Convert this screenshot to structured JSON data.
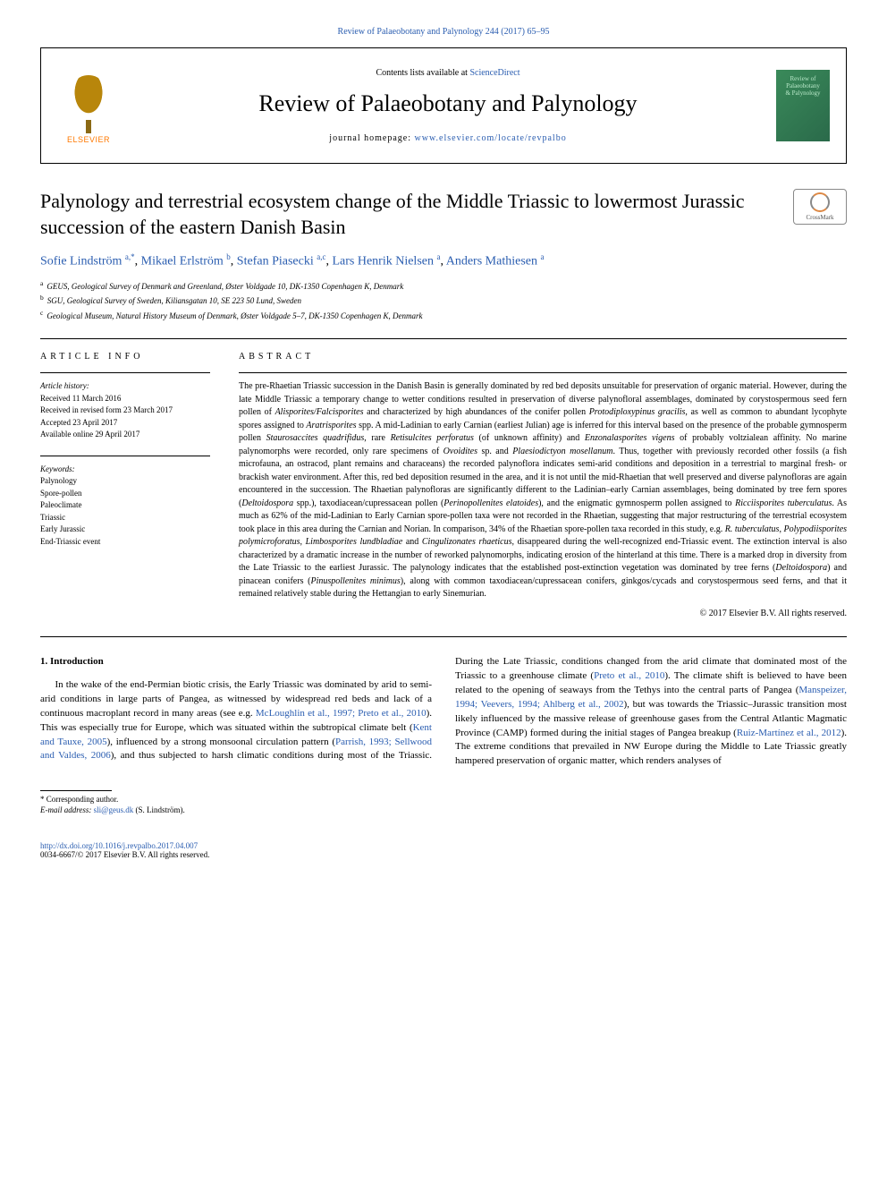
{
  "topBar": {
    "citation": "Review of Palaeobotany and Palynology 244 (2017) 65–95",
    "citationUrl": "#"
  },
  "header": {
    "elsevierLabel": "ELSEVIER",
    "contentsPrefix": "Contents lists available at ",
    "contentsLink": "ScienceDirect",
    "journalName": "Review of Palaeobotany and Palynology",
    "homepagePrefix": "journal homepage: ",
    "homepageUrl": "www.elsevier.com/locate/revpalbo",
    "coverLine1": "Review of",
    "coverLine2": "Palaeobotany",
    "coverLine3": "& Palynology",
    "coverColor": "#3a8a5a"
  },
  "title": "Palynology and terrestrial ecosystem change of the Middle Triassic to lowermost Jurassic succession of the eastern Danish Basin",
  "crossmark": "CrossMark",
  "authors": [
    {
      "name": "Sofie Lindström",
      "sup": "a,*"
    },
    {
      "name": "Mikael Erlström",
      "sup": "b"
    },
    {
      "name": "Stefan Piasecki",
      "sup": "a,c"
    },
    {
      "name": "Lars Henrik Nielsen",
      "sup": "a"
    },
    {
      "name": "Anders Mathiesen",
      "sup": "a"
    }
  ],
  "affiliations": [
    {
      "sup": "a",
      "text": "GEUS, Geological Survey of Denmark and Greenland, Øster Voldgade 10, DK-1350 Copenhagen K, Denmark"
    },
    {
      "sup": "b",
      "text": "SGU, Geological Survey of Sweden, Kiliansgatan 10, SE 223 50 Lund, Sweden"
    },
    {
      "sup": "c",
      "text": "Geological Museum, Natural History Museum of Denmark, Øster Voldgade 5–7, DK-1350 Copenhagen K, Denmark"
    }
  ],
  "articleInfo": {
    "header": "article info",
    "historyLabel": "Article history:",
    "history": [
      "Received 11 March 2016",
      "Received in revised form 23 March 2017",
      "Accepted 23 April 2017",
      "Available online 29 April 2017"
    ],
    "keywordsLabel": "Keywords:",
    "keywords": [
      "Palynology",
      "Spore-pollen",
      "Paleoclimate",
      "Triassic",
      "Early Jurassic",
      "End-Triassic event"
    ]
  },
  "abstract": {
    "header": "abstract",
    "text": "The pre-Rhaetian Triassic succession in the Danish Basin is generally dominated by red bed deposits unsuitable for preservation of organic material. However, during the late Middle Triassic a temporary change to wetter conditions resulted in preservation of diverse palynofloral assemblages, dominated by corystospermous seed fern pollen of <em>Alisporites/Falcisporites</em> and characterized by high abundances of the conifer pollen <em>Protodiploxypinus gracilis</em>, as well as common to abundant lycophyte spores assigned to <em>Aratrisporites</em> spp. A mid-Ladinian to early Carnian (earliest Julian) age is inferred for this interval based on the presence of the probable gymnosperm pollen <em>Staurosaccites quadrifidus</em>, rare <em>Retisulcites perforatus</em> (of unknown affinity) and <em>Enzonalasporites vigens</em> of probably voltzialean affinity. No marine palynomorphs were recorded, only rare specimens of <em>Ovoidites</em> sp. and <em>Plaesiodictyon mosellanum</em>. Thus, together with previously recorded other fossils (a fish microfauna, an ostracod, plant remains and characeans) the recorded palynoflora indicates semi-arid conditions and deposition in a terrestrial to marginal fresh- or brackish water environment. After this, red bed deposition resumed in the area, and it is not until the mid-Rhaetian that well preserved and diverse palynofloras are again encountered in the succession. The Rhaetian palynofloras are significantly different to the Ladinian–early Carnian assemblages, being dominated by tree fern spores (<em>Deltoidospora</em> spp.), taxodiacean/cupressacean pollen (<em>Perinopollenites elatoides</em>), and the enigmatic gymnosperm pollen assigned to <em>Ricciisporites tuberculatus</em>. As much as 62% of the mid-Ladinian to Early Carnian spore-pollen taxa were not recorded in the Rhaetian, suggesting that major restructuring of the terrestrial ecosystem took place in this area during the Carnian and Norian. In comparison, 34% of the Rhaetian spore-pollen taxa recorded in this study, e.g. <em>R. tuberculatus</em>, <em>Polypodiisporites polymicroforatus</em>, <em>Limbosporites lundbladiae</em> and <em>Cingulizonates rhaeticus</em>, disappeared during the well-recognized end-Triassic event. The extinction interval is also characterized by a dramatic increase in the number of reworked palynomorphs, indicating erosion of the hinterland at this time. There is a marked drop in diversity from the Late Triassic to the earliest Jurassic. The palynology indicates that the established post-extinction vegetation was dominated by tree ferns (<em>Deltoidospora</em>) and pinacean conifers (<em>Pinuspollenites minimus</em>), along with common taxodiacean/cupressacean conifers, ginkgos/cycads and corystospermous seed ferns, and that it remained relatively stable during the Hettangian to early Sinemurian.",
    "copyright": "© 2017 Elsevier B.V. All rights reserved."
  },
  "introHeading": "1. Introduction",
  "introText": "In the wake of the end-Permian biotic crisis, the Early Triassic was dominated by arid to semi-arid conditions in large parts of Pangea, as witnessed by widespread red beds and lack of a continuous macroplant record in many areas (see e.g. <a href='#' data-name='ref-link' data-interactable='true'>McLoughlin et al., 1997; Preto et al., 2010</a>). This was especially true for Europe, which was situated within the subtropical climate belt (<a href='#' data-name='ref-link' data-interactable='true'>Kent and Tauxe, 2005</a>), influenced by a strong monsoonal circulation pattern (<a href='#' data-name='ref-link' data-interactable='true'>Parrish, 1993; Sellwood and Valdes, 2006</a>), and thus subjected to harsh climatic conditions during most of the Triassic. During the Late Triassic, conditions changed from the arid climate that dominated most of the Triassic to a greenhouse climate (<a href='#' data-name='ref-link' data-interactable='true'>Preto et al., 2010</a>). The climate shift is believed to have been related to the opening of seaways from the Tethys into the central parts of Pangea (<a href='#' data-name='ref-link' data-interactable='true'>Manspeizer, 1994; Veevers, 1994; Ahlberg et al., 2002</a>), but was towards the Triassic–Jurassic transition most likely influenced by the massive release of greenhouse gases from the Central Atlantic Magmatic Province (CAMP) formed during the initial stages of Pangea breakup (<a href='#' data-name='ref-link' data-interactable='true'>Ruiz-Martínez et al., 2012</a>). The extreme conditions that prevailed in NW Europe during the Middle to Late Triassic greatly hampered preservation of organic matter, which renders analyses of",
  "footer": {
    "corresp": "* Corresponding author.",
    "emailLabel": "E-mail address: ",
    "email": "sli@geus.dk",
    "emailAuthor": " (S. Lindström).",
    "doi": "http://dx.doi.org/10.1016/j.revpalbo.2017.04.007",
    "issn": "0034-6667/© 2017 Elsevier B.V. All rights reserved."
  },
  "colors": {
    "link": "#2a5db0",
    "elsevierOrange": "#ff7800"
  }
}
